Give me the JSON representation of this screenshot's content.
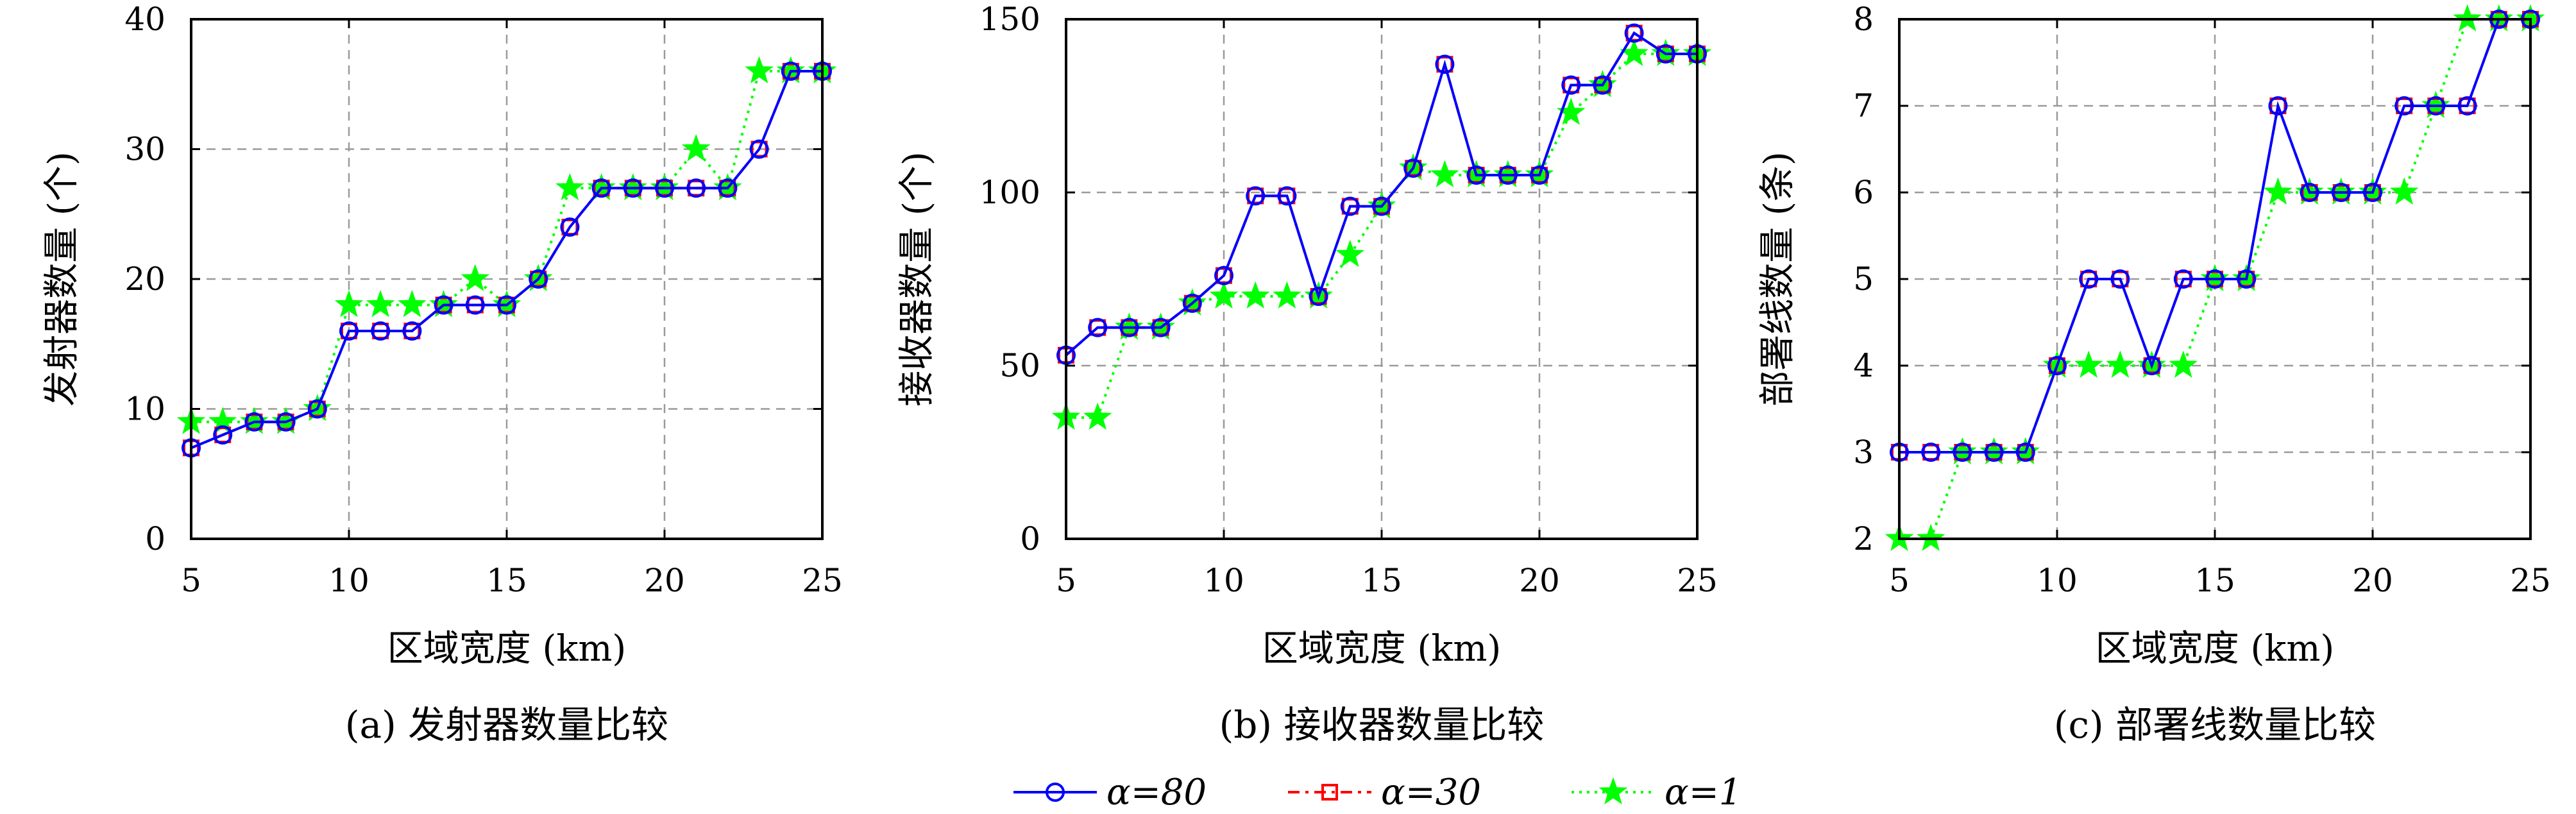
{
  "legend": {
    "entries": [
      {
        "label": "α=80",
        "color": "#0000ff",
        "marker": "circle",
        "dash": "solid"
      },
      {
        "label": "α=30",
        "color": "#ff0000",
        "marker": "square",
        "dash": "dashdot"
      },
      {
        "label": "α=1",
        "color": "#00ff00",
        "marker": "star",
        "dash": "dotted"
      }
    ]
  },
  "chart_data": [
    {
      "type": "line",
      "caption": "(a) 发射器数量比较",
      "xlabel": "区域宽度 (km)",
      "ylabel": "发射器数量 (个)",
      "xlim": [
        5,
        25
      ],
      "ylim": [
        0,
        40
      ],
      "xticks": [
        5,
        10,
        15,
        20,
        25
      ],
      "yticks": [
        0,
        10,
        20,
        30,
        40
      ],
      "grid": true,
      "x": [
        5,
        6,
        7,
        8,
        9,
        10,
        11,
        12,
        13,
        14,
        15,
        16,
        17,
        18,
        19,
        20,
        21,
        22,
        23,
        24,
        25
      ],
      "series": [
        {
          "name": "α=80",
          "values": [
            7,
            8,
            9,
            9,
            10,
            16,
            16,
            16,
            18,
            18,
            18,
            20,
            24,
            27,
            27,
            27,
            27,
            27,
            30,
            36,
            36
          ]
        },
        {
          "name": "α=30",
          "values": [
            7,
            8,
            9,
            9,
            10,
            16,
            16,
            16,
            18,
            18,
            18,
            20,
            24,
            27,
            27,
            27,
            27,
            27,
            30,
            36,
            36
          ]
        },
        {
          "name": "α=1",
          "values": [
            9,
            9,
            9,
            9,
            10,
            18,
            18,
            18,
            18,
            20,
            18,
            20,
            27,
            27,
            27,
            27,
            30,
            27,
            36,
            36,
            36
          ]
        }
      ]
    },
    {
      "type": "line",
      "caption": "(b) 接收器数量比较",
      "xlabel": "区域宽度 (km)",
      "ylabel": "接收器数量 (个)",
      "xlim": [
        5,
        25
      ],
      "ylim": [
        0,
        150
      ],
      "xticks": [
        5,
        10,
        15,
        20,
        25
      ],
      "yticks": [
        0,
        50,
        100,
        150
      ],
      "grid": true,
      "x": [
        5,
        6,
        7,
        8,
        9,
        10,
        11,
        12,
        13,
        14,
        15,
        16,
        17,
        18,
        19,
        20,
        21,
        22,
        23,
        24,
        25
      ],
      "series": [
        {
          "name": "α=80",
          "values": [
            53,
            61,
            61,
            61,
            68,
            76,
            99,
            99,
            70,
            96,
            96,
            107,
            137,
            105,
            105,
            105,
            131,
            131,
            146,
            140,
            140
          ]
        },
        {
          "name": "α=30",
          "values": [
            53,
            61,
            61,
            61,
            68,
            76,
            99,
            99,
            70,
            96,
            96,
            107,
            137,
            105,
            105,
            105,
            131,
            131,
            146,
            140,
            140
          ]
        },
        {
          "name": "α=1",
          "values": [
            35,
            35,
            61,
            61,
            68,
            70,
            70,
            70,
            70,
            82,
            96,
            107,
            105,
            105,
            105,
            105,
            123,
            131,
            140,
            140,
            140
          ]
        }
      ]
    },
    {
      "type": "line",
      "caption": "(c) 部署线数量比较",
      "xlabel": "区域宽度 (km)",
      "ylabel": "部署线数量 (条)",
      "xlim": [
        5,
        25
      ],
      "ylim": [
        2,
        8
      ],
      "xticks": [
        5,
        10,
        15,
        20,
        25
      ],
      "yticks": [
        2,
        3,
        4,
        5,
        6,
        7,
        8
      ],
      "grid": true,
      "x": [
        5,
        6,
        7,
        8,
        9,
        10,
        11,
        12,
        13,
        14,
        15,
        16,
        17,
        18,
        19,
        20,
        21,
        22,
        23,
        24,
        25
      ],
      "series": [
        {
          "name": "α=80",
          "values": [
            3,
            3,
            3,
            3,
            3,
            4,
            5,
            5,
            4,
            5,
            5,
            5,
            7,
            6,
            6,
            6,
            7,
            7,
            7,
            8,
            8
          ]
        },
        {
          "name": "α=30",
          "values": [
            3,
            3,
            3,
            3,
            3,
            4,
            5,
            5,
            4,
            5,
            5,
            5,
            7,
            6,
            6,
            6,
            7,
            7,
            7,
            8,
            8
          ]
        },
        {
          "name": "α=1",
          "values": [
            2,
            2,
            3,
            3,
            3,
            4,
            4,
            4,
            4,
            4,
            5,
            5,
            6,
            6,
            6,
            6,
            6,
            7,
            8,
            8,
            8
          ]
        }
      ]
    }
  ]
}
